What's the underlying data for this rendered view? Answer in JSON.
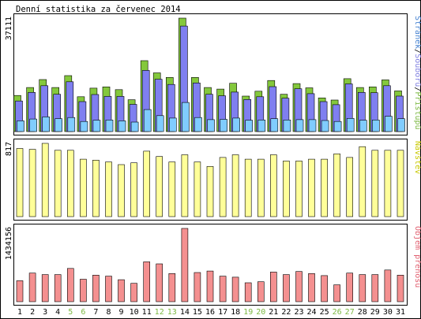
{
  "title": "Denní statistika za červenec 2014",
  "chart_data": [
    {
      "type": "bar",
      "panel": "hits",
      "ymax_label": "37111",
      "ylim": [
        0,
        37111
      ],
      "side_label_parts": [
        {
          "text": "Stránek",
          "color": "#4682d0"
        },
        {
          "text": "/",
          "color": "#000000"
        },
        {
          "text": "Souborů",
          "color": "#8080e0"
        },
        {
          "text": "/",
          "color": "#000000"
        },
        {
          "text": "Přístupů",
          "color": "#7cb842"
        }
      ],
      "categories": [
        "1",
        "2",
        "3",
        "4",
        "5",
        "6",
        "7",
        "8",
        "9",
        "10",
        "11",
        "12",
        "13",
        "14",
        "15",
        "16",
        "17",
        "18",
        "19",
        "20",
        "21",
        "22",
        "23",
        "24",
        "25",
        "26",
        "27",
        "28",
        "29",
        "30",
        "31"
      ],
      "series": [
        {
          "name": "Přístupů",
          "color": "#84c83c",
          "values": [
            11800,
            14400,
            17000,
            14400,
            18300,
            11400,
            14200,
            14600,
            13700,
            10400,
            23200,
            19200,
            17700,
            37111,
            17700,
            14400,
            13900,
            15800,
            11600,
            13200,
            16700,
            12200,
            15700,
            14300,
            11000,
            10300,
            17300,
            14400,
            14600,
            16900,
            13300
          ]
        },
        {
          "name": "Souborů",
          "color": "#7f7ff0",
          "values": [
            10000,
            12800,
            15000,
            12200,
            16300,
            9800,
            12100,
            11500,
            11500,
            8900,
            20000,
            17100,
            15400,
            34500,
            15900,
            12200,
            11700,
            12900,
            10500,
            11400,
            14700,
            10900,
            14000,
            12400,
            9800,
            8800,
            15600,
            12800,
            12700,
            15000,
            11600
          ]
        },
        {
          "name": "Stránek",
          "color": "#80ccff",
          "values": [
            3500,
            4100,
            4800,
            4200,
            4600,
            3300,
            3700,
            3800,
            3500,
            3100,
            7200,
            5200,
            4400,
            9500,
            4600,
            3900,
            4000,
            4400,
            3700,
            3800,
            4200,
            3800,
            3900,
            3900,
            3600,
            3300,
            4300,
            3700,
            3800,
            5000,
            4200
          ]
        }
      ]
    },
    {
      "type": "bar",
      "panel": "visits",
      "ymax_label": "817",
      "ylim": [
        0,
        817
      ],
      "side_label": "Návštěv",
      "side_label_color": "#c8c800",
      "categories": [
        "1",
        "2",
        "3",
        "4",
        "5",
        "6",
        "7",
        "8",
        "9",
        "10",
        "11",
        "12",
        "13",
        "14",
        "15",
        "16",
        "17",
        "18",
        "19",
        "20",
        "21",
        "22",
        "23",
        "24",
        "25",
        "26",
        "27",
        "28",
        "29",
        "30",
        "31"
      ],
      "series": [
        {
          "name": "Návštěv",
          "color": "#ffff99",
          "values": [
            760,
            750,
            817,
            740,
            740,
            640,
            630,
            610,
            580,
            600,
            730,
            670,
            610,
            690,
            610,
            560,
            660,
            690,
            640,
            640,
            690,
            620,
            620,
            640,
            640,
            700,
            660,
            780,
            740,
            740,
            740
          ]
        }
      ]
    },
    {
      "type": "bar",
      "panel": "volume",
      "ymax_label": "1434156",
      "ylim": [
        0,
        1434156
      ],
      "side_label": "Objem přenosu",
      "side_label_color": "#e06070",
      "categories": [
        "1",
        "2",
        "3",
        "4",
        "5",
        "6",
        "7",
        "8",
        "9",
        "10",
        "11",
        "12",
        "13",
        "14",
        "15",
        "16",
        "17",
        "18",
        "19",
        "20",
        "21",
        "22",
        "23",
        "24",
        "25",
        "26",
        "27",
        "28",
        "29",
        "30",
        "31"
      ],
      "series": [
        {
          "name": "Objem přenosu",
          "color": "#f49090",
          "values": [
            410000,
            560000,
            530000,
            530000,
            650000,
            440000,
            520000,
            500000,
            430000,
            360000,
            780000,
            740000,
            550000,
            1434156,
            570000,
            600000,
            500000,
            480000,
            370000,
            390000,
            580000,
            530000,
            590000,
            550000,
            510000,
            330000,
            560000,
            530000,
            530000,
            620000,
            520000
          ]
        }
      ]
    }
  ],
  "weekend_days": [
    "5",
    "6",
    "12",
    "13",
    "19",
    "20",
    "26",
    "27"
  ],
  "colors": {
    "weekday_label": "#000000",
    "weekend_label": "#7cb842",
    "frame": "#000000",
    "panel_bg": "#ffffff"
  }
}
